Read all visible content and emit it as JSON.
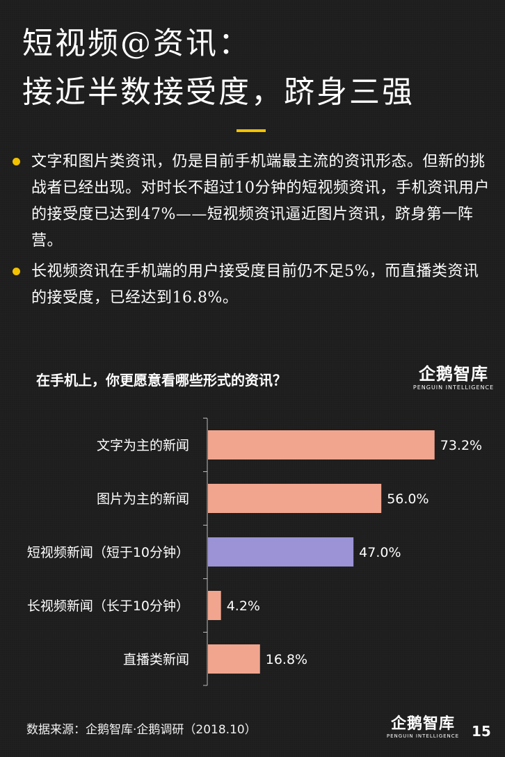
{
  "slide": {
    "title_line1": "短视频@资讯：",
    "title_line2": "接近半数接受度，跻身三强",
    "bullets": [
      "文字和图片类资讯，仍是目前手机端最主流的资讯形态。但新的挑战者已经出现。对时长不超过10分钟的短视频资讯，手机资讯用户的接受度已达到47%——短视频资讯逼近图片资讯，跻身第一阵营。",
      "长视频资讯在手机端的用户接受度目前仍不足5%，而直播类资讯的接受度，已经达到16.8%。"
    ],
    "question": "在手机上，你更愿意看哪些形式的资讯？",
    "logo_text": "企鹅智库",
    "logo_sub": "PENGUIN INTELLIGENCE",
    "source": "数据来源：企鹅智库·企鹅调研（2018.10）",
    "page_number": "15"
  },
  "colors": {
    "background": "#1d1d1d",
    "accent": "#f2c200",
    "bar_default": "#f2a58e",
    "bar_highlight": "#9b93d6",
    "axis": "#bdbdbd"
  },
  "chart_data": {
    "type": "bar",
    "orientation": "horizontal",
    "categories": [
      "文字为主的新闻",
      "图片为主的新闻",
      "短视频新闻（短于10分钟）",
      "长视频新闻（长于10分钟）",
      "直播类新闻"
    ],
    "values": [
      73.2,
      56.0,
      47.0,
      4.2,
      16.8
    ],
    "value_labels": [
      "73.2%",
      "56.0%",
      "47.0%",
      "4.2%",
      "16.8%"
    ],
    "highlight_index": 2,
    "xlim": [
      0,
      80
    ],
    "grid": false,
    "legend": "none"
  }
}
